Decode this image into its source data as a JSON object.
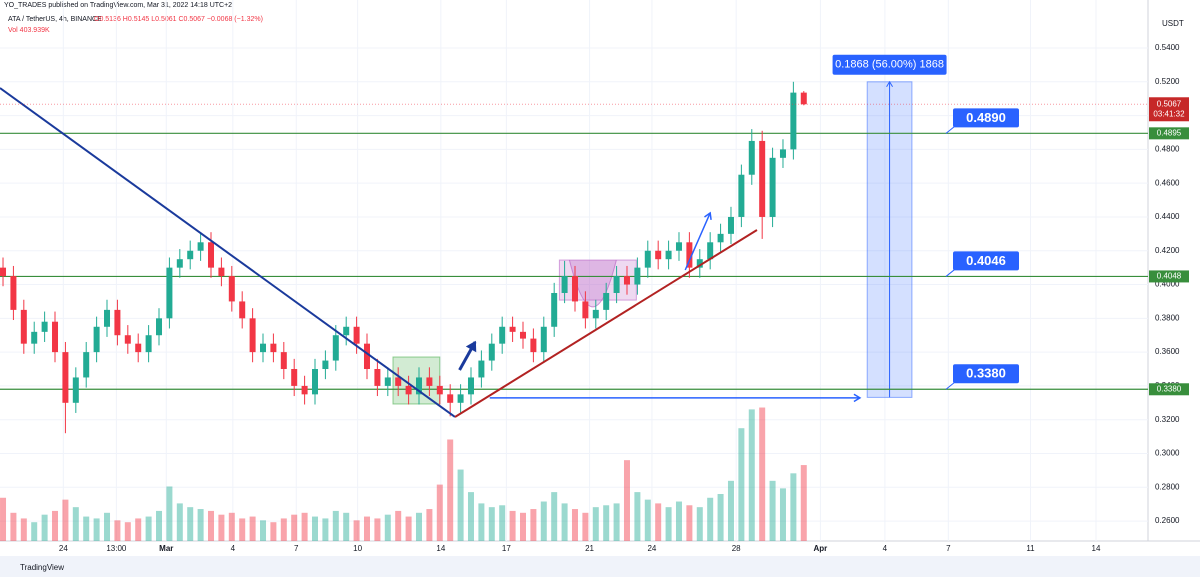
{
  "header": {
    "publisher": "YO_TRADES published on TradingView.com, Mar 31, 2022 14:18 UTC+2",
    "symbol": "ATA / TetherUS, 4h, BINANCE",
    "ohlc": "O0.5136 H0.5145 L0.5061 C0.5067 −0.0068 (−1.32%)",
    "volume": "Vol 403.939K"
  },
  "footer": "TradingView",
  "chart_data": {
    "type": "candlestick",
    "open": [
      0.41,
      0.405,
      0.385,
      0.365,
      0.372,
      0.378,
      0.36,
      0.33,
      0.345,
      0.36,
      0.375,
      0.385,
      0.37,
      0.365,
      0.36,
      0.37,
      0.38,
      0.41,
      0.415,
      0.42,
      0.425,
      0.41,
      0.405,
      0.39,
      0.38,
      0.36,
      0.365,
      0.36,
      0.35,
      0.34,
      0.335,
      0.35,
      0.355,
      0.37,
      0.375,
      0.365,
      0.35,
      0.34,
      0.345,
      0.34,
      0.335,
      0.345,
      0.34,
      0.335,
      0.33,
      0.335,
      0.345,
      0.355,
      0.365,
      0.375,
      0.372,
      0.368,
      0.36,
      0.375,
      0.395,
      0.405,
      0.39,
      0.38,
      0.385,
      0.395,
      0.405,
      0.4,
      0.41,
      0.42,
      0.415,
      0.42,
      0.425,
      0.41,
      0.415,
      0.425,
      0.43,
      0.44,
      0.465,
      0.485,
      0.44,
      0.475,
      0.48,
      0.5136
    ],
    "high": [
      0.416,
      0.411,
      0.391,
      0.378,
      0.384,
      0.384,
      0.366,
      0.351,
      0.366,
      0.381,
      0.391,
      0.391,
      0.376,
      0.371,
      0.376,
      0.386,
      0.416,
      0.421,
      0.426,
      0.431,
      0.431,
      0.416,
      0.411,
      0.396,
      0.386,
      0.371,
      0.371,
      0.366,
      0.356,
      0.346,
      0.356,
      0.361,
      0.376,
      0.381,
      0.381,
      0.371,
      0.356,
      0.351,
      0.351,
      0.346,
      0.351,
      0.351,
      0.346,
      0.341,
      0.341,
      0.351,
      0.361,
      0.371,
      0.381,
      0.381,
      0.378,
      0.374,
      0.381,
      0.401,
      0.414,
      0.411,
      0.396,
      0.391,
      0.401,
      0.411,
      0.411,
      0.416,
      0.426,
      0.426,
      0.426,
      0.431,
      0.431,
      0.421,
      0.431,
      0.436,
      0.446,
      0.471,
      0.492,
      0.491,
      0.481,
      0.486,
      0.52,
      0.5145
    ],
    "low": [
      0.399,
      0.379,
      0.359,
      0.359,
      0.366,
      0.354,
      0.312,
      0.324,
      0.339,
      0.354,
      0.369,
      0.364,
      0.359,
      0.354,
      0.354,
      0.364,
      0.374,
      0.404,
      0.409,
      0.414,
      0.404,
      0.399,
      0.384,
      0.374,
      0.354,
      0.354,
      0.354,
      0.344,
      0.334,
      0.329,
      0.329,
      0.344,
      0.349,
      0.364,
      0.359,
      0.344,
      0.334,
      0.334,
      0.334,
      0.329,
      0.329,
      0.334,
      0.329,
      0.322,
      0.324,
      0.329,
      0.339,
      0.349,
      0.359,
      0.366,
      0.362,
      0.354,
      0.354,
      0.369,
      0.389,
      0.384,
      0.374,
      0.374,
      0.379,
      0.389,
      0.394,
      0.394,
      0.404,
      0.409,
      0.409,
      0.414,
      0.404,
      0.404,
      0.409,
      0.419,
      0.424,
      0.434,
      0.459,
      0.427,
      0.434,
      0.469,
      0.474,
      0.5061
    ],
    "close": [
      0.405,
      0.385,
      0.365,
      0.372,
      0.378,
      0.36,
      0.33,
      0.345,
      0.36,
      0.375,
      0.385,
      0.37,
      0.365,
      0.36,
      0.37,
      0.38,
      0.41,
      0.415,
      0.42,
      0.425,
      0.41,
      0.405,
      0.39,
      0.38,
      0.36,
      0.365,
      0.36,
      0.35,
      0.34,
      0.335,
      0.35,
      0.355,
      0.37,
      0.375,
      0.365,
      0.35,
      0.34,
      0.345,
      0.34,
      0.335,
      0.345,
      0.34,
      0.335,
      0.33,
      0.335,
      0.345,
      0.355,
      0.365,
      0.375,
      0.372,
      0.368,
      0.36,
      0.375,
      0.395,
      0.405,
      0.39,
      0.38,
      0.385,
      0.395,
      0.405,
      0.4,
      0.41,
      0.42,
      0.415,
      0.42,
      0.425,
      0.41,
      0.415,
      0.425,
      0.43,
      0.44,
      0.465,
      0.485,
      0.44,
      0.475,
      0.48,
      0.5136,
      0.5067
    ],
    "volume": [
      230,
      150,
      120,
      100,
      140,
      160,
      220,
      180,
      130,
      120,
      150,
      110,
      100,
      120,
      130,
      160,
      290,
      200,
      180,
      170,
      160,
      140,
      150,
      120,
      130,
      110,
      100,
      120,
      140,
      150,
      130,
      120,
      160,
      150,
      110,
      130,
      120,
      140,
      160,
      130,
      150,
      170,
      300,
      540,
      380,
      260,
      200,
      180,
      190,
      160,
      150,
      170,
      210,
      260,
      200,
      170,
      150,
      180,
      190,
      200,
      430,
      260,
      220,
      200,
      180,
      210,
      190,
      180,
      230,
      250,
      320,
      600,
      700,
      710,
      320,
      280,
      360,
      403.939
    ],
    "up_color": "#22ab94",
    "down_color": "#f23645",
    "xlim": [
      -0.29,
      110.1
    ],
    "xticks": [
      {
        "value": 5.8,
        "label": "24"
      },
      {
        "value": 10.9,
        "label": "13:00"
      },
      {
        "value": 15.7,
        "label": "Mar"
      },
      {
        "value": 22.1,
        "label": "4"
      },
      {
        "value": 28.2,
        "label": "7"
      },
      {
        "value": 34.1,
        "label": "10"
      },
      {
        "value": 42.1,
        "label": "14"
      },
      {
        "value": 48.4,
        "label": "17"
      },
      {
        "value": 56.4,
        "label": "21"
      },
      {
        "value": 62.4,
        "label": "24"
      },
      {
        "value": 70.5,
        "label": "28"
      },
      {
        "value": 78.6,
        "label": "Apr"
      },
      {
        "value": 84.8,
        "label": "4"
      },
      {
        "value": 90.9,
        "label": "7"
      },
      {
        "value": 98.8,
        "label": "11"
      },
      {
        "value": 105.1,
        "label": "14"
      }
    ],
    "ylim": [
      0.2482,
      0.5625
    ],
    "yticks": [
      {
        "value": 0.54,
        "label": "0.5400"
      },
      {
        "value": 0.52,
        "label": "0.5200"
      },
      {
        "value": 0.5,
        "label": "0.5000"
      },
      {
        "value": 0.48,
        "label": "0.4800"
      },
      {
        "value": 0.46,
        "label": "0.4600"
      },
      {
        "value": 0.44,
        "label": "0.4400"
      },
      {
        "value": 0.42,
        "label": "0.4200"
      },
      {
        "value": 0.4,
        "label": "0.4000"
      },
      {
        "value": 0.38,
        "label": "0.3800"
      },
      {
        "value": 0.36,
        "label": "0.3600"
      },
      {
        "value": 0.34,
        "label": "0.3400"
      },
      {
        "value": 0.32,
        "label": "0.3200"
      },
      {
        "value": 0.3,
        "label": "0.3000"
      },
      {
        "value": 0.28,
        "label": "0.2800"
      },
      {
        "value": 0.26,
        "label": "0.2600"
      }
    ],
    "currency": "USDT",
    "last_price": {
      "value": 0.5067,
      "label": "0.5067",
      "countdown": "03:41:32"
    },
    "level_color": "#388e3c",
    "levels": [
      {
        "value": 0.4895,
        "label": "0.4895",
        "note": "0.4890"
      },
      {
        "value": 0.4048,
        "label": "0.4048",
        "note": "0.4046"
      },
      {
        "value": 0.338,
        "label": "0.3380",
        "note": "0.3380"
      }
    ],
    "trendlines": [
      {
        "color": "#1a3a9c",
        "from": [
          -0.29,
          0.5163
        ],
        "to": [
          43.46,
          0.3216
        ]
      },
      {
        "color": "#b22222",
        "from": [
          43.46,
          0.3216
        ],
        "to": [
          72.5,
          0.4323
        ]
      }
    ],
    "arrows": [
      {
        "from": [
          46.8,
          0.3329
        ],
        "to": [
          82.4,
          0.3329
        ]
      },
      {
        "from": [
          43.9,
          0.3494
        ],
        "to": [
          45.4,
          0.366
        ]
      },
      {
        "from": [
          65.6,
          0.4086
        ],
        "to": [
          68.0,
          0.4424
        ]
      }
    ],
    "boxes": [
      {
        "color": "#4caf50",
        "x": [
          37.5,
          42.0
        ],
        "y": [
          0.3293,
          0.3571
        ]
      },
      {
        "color": "#ba68c8",
        "x": [
          53.5,
          60.9
        ],
        "y": [
          0.3908,
          0.4145
        ],
        "cup": 0.3749
      }
    ],
    "measure": {
      "x": [
        83.1,
        87.4
      ],
      "from": 0.3332,
      "to": 0.52,
      "label": "0.1868 (56.00%) 1868"
    }
  }
}
